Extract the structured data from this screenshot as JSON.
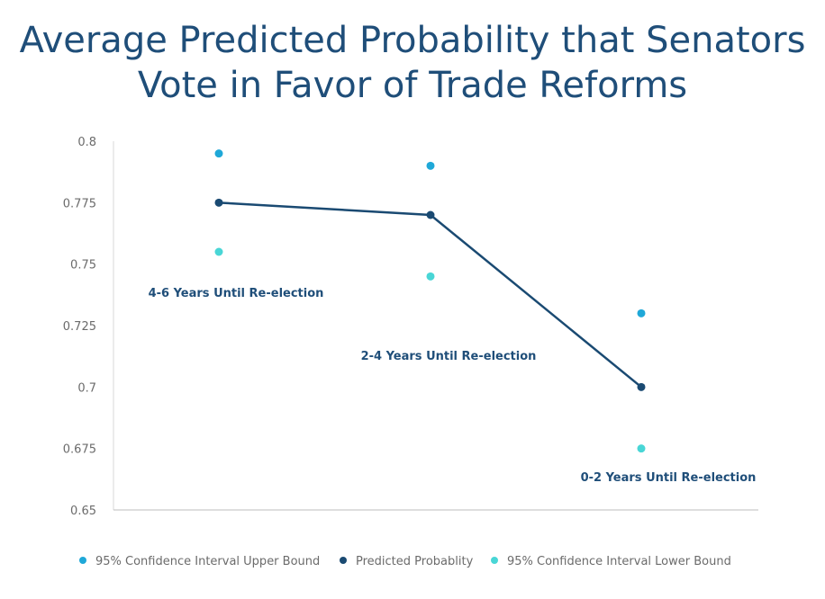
{
  "chart_data": {
    "type": "line",
    "title": "Average Predicted Probability that Senators Vote in Favor of Trade Reforms",
    "categories": [
      "4-6 Years Until Re-election",
      "2-4 Years Until Re-election",
      "0-2 Years Until Re-election"
    ],
    "series": [
      {
        "name": "95% Confidence Interval Upper Bound",
        "values": [
          0.795,
          0.79,
          0.73
        ],
        "color": "#1fa8d8",
        "mode": "markers"
      },
      {
        "name": "Predicted Probablity",
        "values": [
          0.775,
          0.77,
          0.7
        ],
        "color": "#1a4a72",
        "mode": "lines+markers"
      },
      {
        "name": "95% Confidence Interval Lower Bound",
        "values": [
          0.755,
          0.745,
          0.675
        ],
        "color": "#49d6d6",
        "mode": "markers"
      }
    ],
    "ylim": [
      0.65,
      0.8
    ],
    "yticks": [
      "0.8",
      "0.775",
      "0.75",
      "0.725",
      "0.7",
      "0.675",
      "0.65"
    ],
    "xlabel": "",
    "ylabel": "",
    "grid": false,
    "legend": "bottom"
  }
}
